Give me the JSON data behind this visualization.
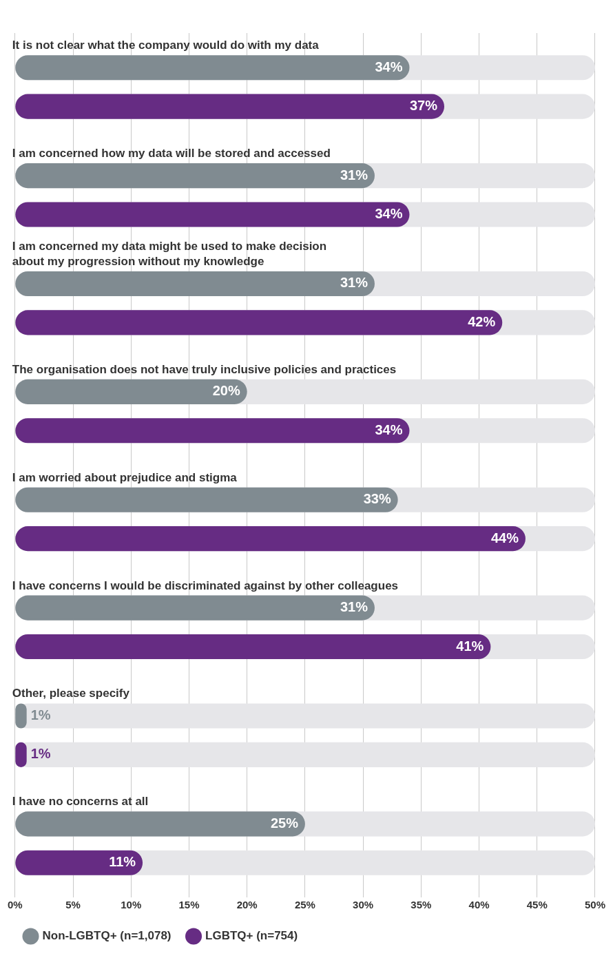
{
  "chart_data": {
    "type": "bar",
    "orientation": "horizontal",
    "categories": [
      "It is not clear what the company would do with my data",
      "I am concerned how my data will be stored and accessed",
      "I am concerned my data might be used to make decision\nabout my progression without my knowledge",
      "The organisation does not have truly inclusive policies and practices",
      "I am worried about prejudice and stigma",
      "I have concerns I would be discriminated against by other colleagues",
      "Other, please specify",
      "I have no concerns at all"
    ],
    "series": [
      {
        "name": "Non-LGBTQ+ (n=1,078)",
        "color": "#808b91",
        "values": [
          34,
          31,
          31,
          20,
          33,
          31,
          1,
          25
        ],
        "value_labels": [
          "34%",
          "31%",
          "31%",
          "20%",
          "33%",
          "31%",
          "1%",
          "25%"
        ]
      },
      {
        "name": "LGBTQ+ (n=754)",
        "color": "#662c83",
        "values": [
          37,
          34,
          42,
          34,
          44,
          41,
          1,
          11
        ],
        "value_labels": [
          "37%",
          "34%",
          "42%",
          "34%",
          "44%",
          "41%",
          "1%",
          "11%"
        ]
      }
    ],
    "xlim": [
      0,
      50
    ],
    "xticks": [
      {
        "value": 0,
        "label": "0%"
      },
      {
        "value": 5,
        "label": "5%"
      },
      {
        "value": 10,
        "label": "10%"
      },
      {
        "value": 15,
        "label": "15%"
      },
      {
        "value": 20,
        "label": "20%"
      },
      {
        "value": 25,
        "label": "25%"
      },
      {
        "value": 30,
        "label": "30%"
      },
      {
        "value": 35,
        "label": "35%"
      },
      {
        "value": 40,
        "label": "40%"
      },
      {
        "value": 45,
        "label": "45%"
      },
      {
        "value": 50,
        "label": "50%"
      }
    ],
    "grid": "x",
    "legend": "bottom left"
  }
}
